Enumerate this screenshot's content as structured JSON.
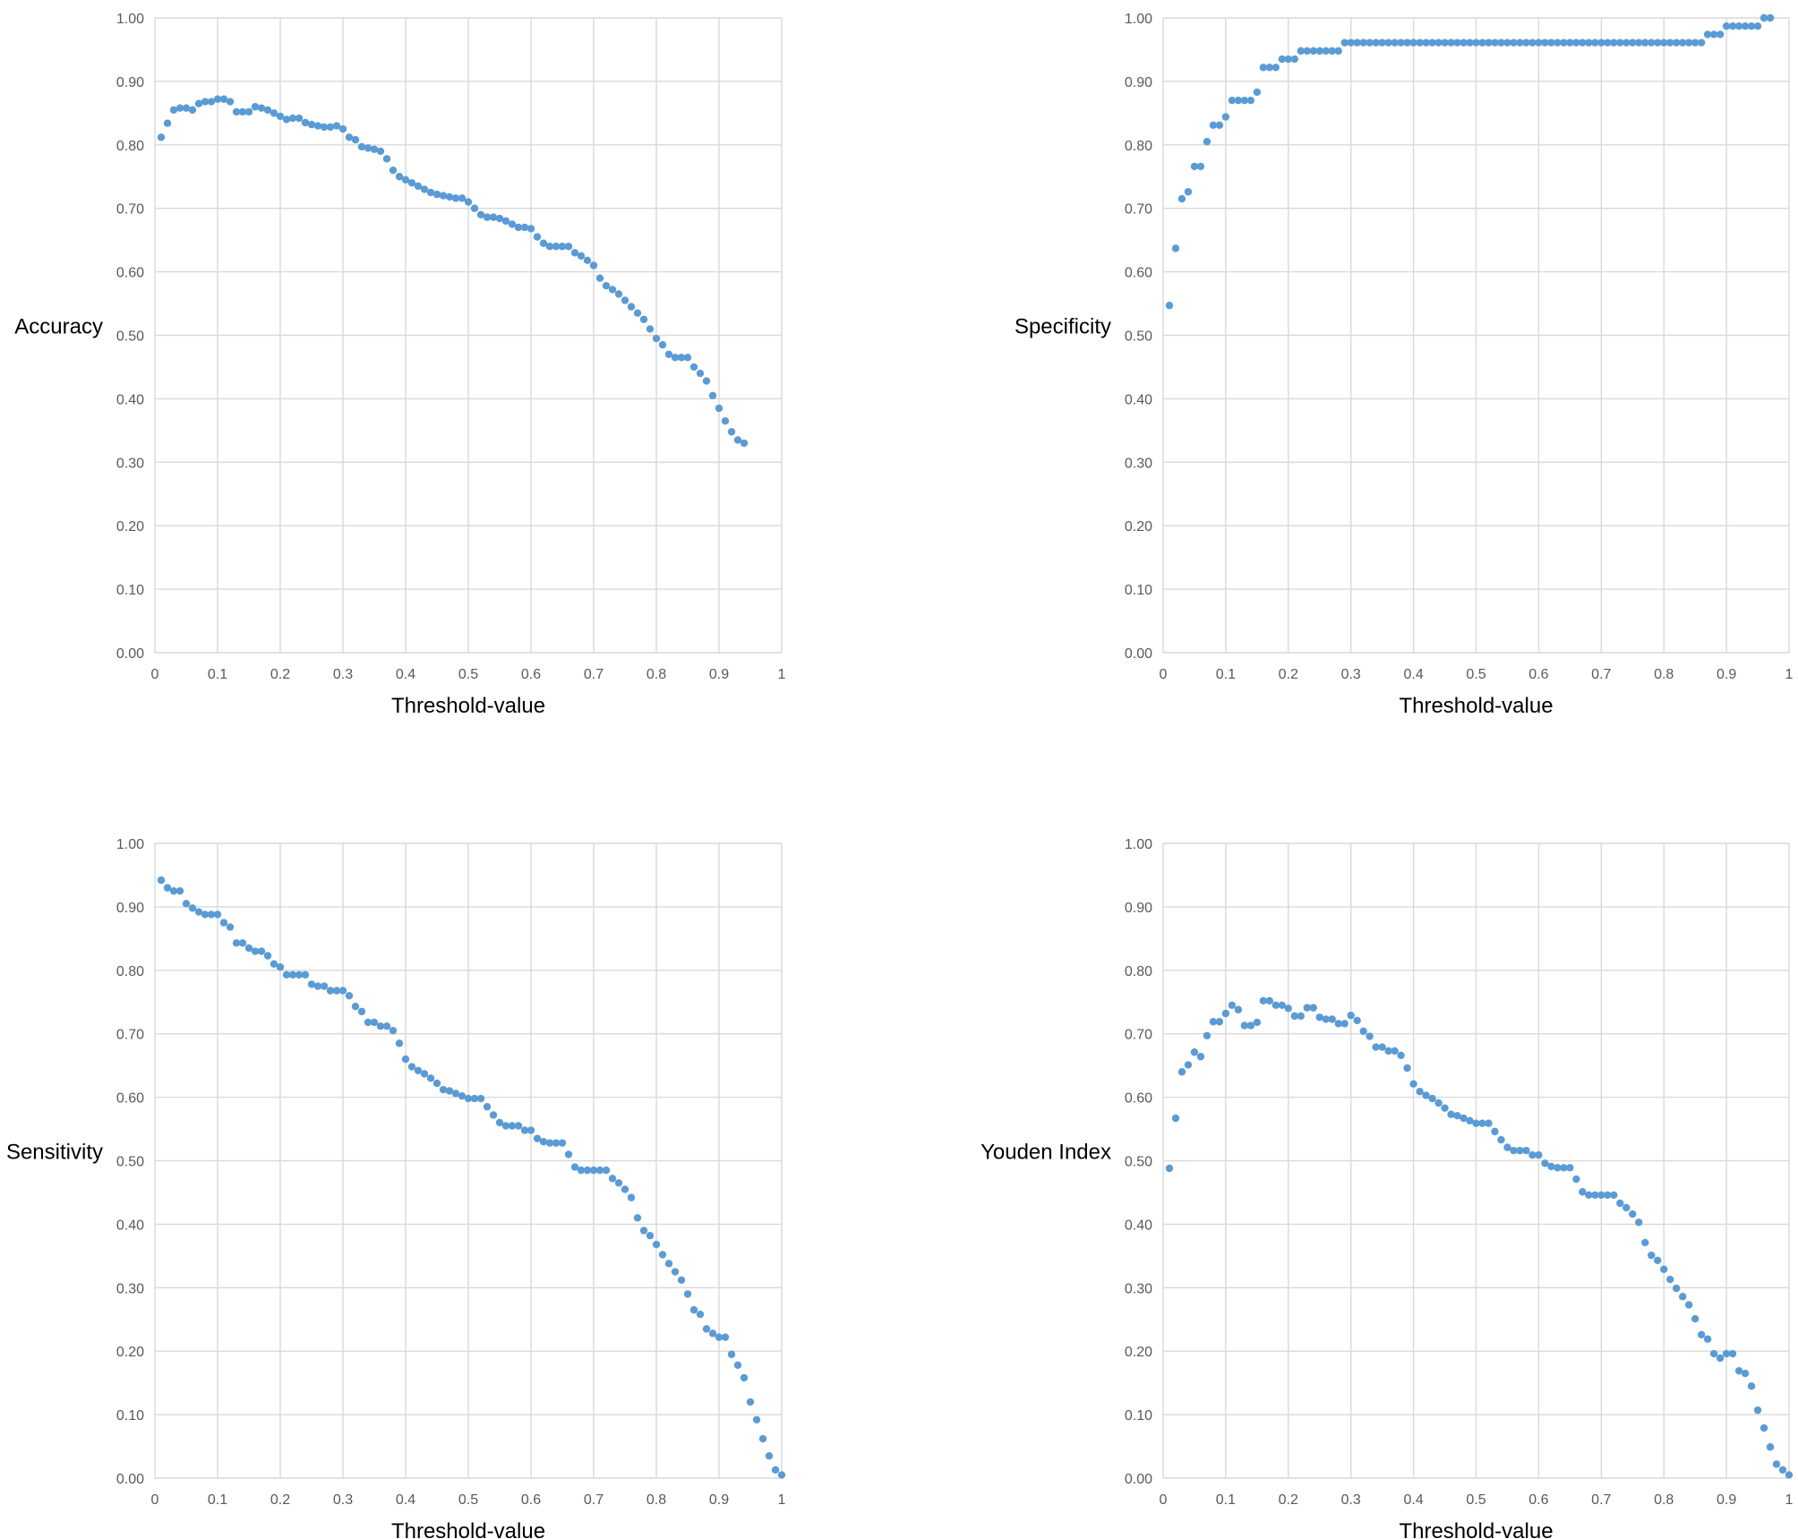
{
  "chart_data": [
    {
      "type": "scatter",
      "xlabel": "Threshold-value",
      "ylabel": "Accuracy",
      "xlim": [
        0,
        1
      ],
      "ylim": [
        0,
        1
      ],
      "x_ticks": [
        "0",
        "0.1",
        "0.2",
        "0.3",
        "0.4",
        "0.5",
        "0.6",
        "0.7",
        "0.8",
        "0.9",
        "1"
      ],
      "y_ticks": [
        "0.00",
        "0.10",
        "0.20",
        "0.30",
        "0.40",
        "0.50",
        "0.60",
        "0.70",
        "0.80",
        "0.90",
        "1.00"
      ],
      "grid": true,
      "marker_color": "#5b9bd5",
      "y": [
        0.812,
        0.834,
        0.855,
        0.858,
        0.858,
        0.855,
        0.865,
        0.868,
        0.868,
        0.872,
        0.872,
        0.868,
        0.852,
        0.852,
        0.852,
        0.86,
        0.858,
        0.855,
        0.85,
        0.845,
        0.84,
        0.842,
        0.842,
        0.835,
        0.832,
        0.83,
        0.828,
        0.828,
        0.83,
        0.825,
        0.812,
        0.808,
        0.797,
        0.795,
        0.793,
        0.79,
        0.778,
        0.76,
        0.75,
        0.745,
        0.74,
        0.735,
        0.73,
        0.725,
        0.722,
        0.72,
        0.718,
        0.716,
        0.716,
        0.71,
        0.7,
        0.69,
        0.686,
        0.686,
        0.684,
        0.68,
        0.675,
        0.67,
        0.67,
        0.668,
        0.655,
        0.645,
        0.64,
        0.64,
        0.64,
        0.64,
        0.63,
        0.625,
        0.618,
        0.61,
        0.59,
        0.578,
        0.572,
        0.565,
        0.555,
        0.545,
        0.535,
        0.525,
        0.51,
        0.495,
        0.485,
        0.47,
        0.465,
        0.465,
        0.465,
        0.45,
        0.44,
        0.428,
        0.405,
        0.385,
        0.365,
        0.348,
        0.335,
        0.33
      ]
    },
    {
      "type": "scatter",
      "xlabel": "Threshold-value",
      "ylabel": "Specificity",
      "xlim": [
        0,
        1
      ],
      "ylim": [
        0,
        1
      ],
      "x_ticks": [
        "0",
        "0.1",
        "0.2",
        "0.3",
        "0.4",
        "0.5",
        "0.6",
        "0.7",
        "0.8",
        "0.9",
        "1"
      ],
      "y_ticks": [
        "0.00",
        "0.10",
        "0.20",
        "0.30",
        "0.40",
        "0.50",
        "0.60",
        "0.70",
        "0.80",
        "0.90",
        "1.00"
      ],
      "grid": true,
      "marker_color": "#5b9bd5",
      "y": [
        0.547,
        0.637,
        0.715,
        0.726,
        0.766,
        0.766,
        0.805,
        0.831,
        0.831,
        0.844,
        0.87,
        0.87,
        0.87,
        0.87,
        0.883,
        0.922,
        0.922,
        0.922,
        0.935,
        0.935,
        0.935,
        0.948,
        0.948,
        0.948,
        0.948,
        0.948,
        0.948,
        0.948,
        0.961,
        0.961,
        0.961,
        0.961,
        0.961,
        0.961,
        0.961,
        0.961,
        0.961,
        0.961,
        0.961,
        0.961,
        0.961,
        0.961,
        0.961,
        0.961,
        0.961,
        0.961,
        0.961,
        0.961,
        0.961,
        0.961,
        0.961,
        0.961,
        0.961,
        0.961,
        0.961,
        0.961,
        0.961,
        0.961,
        0.961,
        0.961,
        0.961,
        0.961,
        0.961,
        0.961,
        0.961,
        0.961,
        0.961,
        0.961,
        0.961,
        0.961,
        0.961,
        0.961,
        0.961,
        0.961,
        0.961,
        0.961,
        0.961,
        0.961,
        0.961,
        0.961,
        0.961,
        0.961,
        0.961,
        0.961,
        0.961,
        0.961,
        0.974,
        0.974,
        0.974,
        0.987,
        0.987,
        0.987,
        0.987,
        0.987,
        0.987,
        1.0,
        1.0
      ]
    },
    {
      "type": "scatter",
      "xlabel": "Threshold-value",
      "ylabel": "Sensitivity",
      "xlim": [
        0,
        1
      ],
      "ylim": [
        0,
        1
      ],
      "x_ticks": [
        "0",
        "0.1",
        "0.2",
        "0.3",
        "0.4",
        "0.5",
        "0.6",
        "0.7",
        "0.8",
        "0.9",
        "1"
      ],
      "y_ticks": [
        "0.00",
        "0.10",
        "0.20",
        "0.30",
        "0.40",
        "0.50",
        "0.60",
        "0.70",
        "0.80",
        "0.90",
        "1.00"
      ],
      "grid": true,
      "marker_color": "#5b9bd5",
      "y": [
        0.942,
        0.93,
        0.925,
        0.925,
        0.905,
        0.898,
        0.892,
        0.888,
        0.888,
        0.888,
        0.875,
        0.868,
        0.843,
        0.843,
        0.835,
        0.83,
        0.83,
        0.823,
        0.81,
        0.805,
        0.793,
        0.793,
        0.793,
        0.793,
        0.778,
        0.775,
        0.775,
        0.768,
        0.768,
        0.768,
        0.76,
        0.743,
        0.735,
        0.718,
        0.718,
        0.712,
        0.712,
        0.705,
        0.685,
        0.66,
        0.648,
        0.642,
        0.637,
        0.63,
        0.622,
        0.612,
        0.61,
        0.606,
        0.602,
        0.598,
        0.598,
        0.598,
        0.585,
        0.572,
        0.56,
        0.555,
        0.555,
        0.555,
        0.548,
        0.548,
        0.535,
        0.53,
        0.528,
        0.528,
        0.528,
        0.51,
        0.49,
        0.485,
        0.485,
        0.485,
        0.485,
        0.485,
        0.472,
        0.465,
        0.455,
        0.442,
        0.41,
        0.39,
        0.382,
        0.368,
        0.352,
        0.338,
        0.325,
        0.312,
        0.29,
        0.265,
        0.258,
        0.235,
        0.228,
        0.222,
        0.222,
        0.195,
        0.178,
        0.158,
        0.12,
        0.092,
        0.062,
        0.035,
        0.013,
        0.005
      ]
    },
    {
      "type": "scatter",
      "xlabel": "Threshold-value",
      "ylabel": "Youden Index",
      "xlim": [
        0,
        1
      ],
      "ylim": [
        0,
        1
      ],
      "x_ticks": [
        "0",
        "0.1",
        "0.2",
        "0.3",
        "0.4",
        "0.5",
        "0.6",
        "0.7",
        "0.8",
        "0.9",
        "1"
      ],
      "y_ticks": [
        "0.00",
        "0.10",
        "0.20",
        "0.30",
        "0.40",
        "0.50",
        "0.60",
        "0.70",
        "0.80",
        "0.90",
        "1.00"
      ],
      "grid": true,
      "marker_color": "#5b9bd5",
      "y": [
        0.488,
        0.567,
        0.64,
        0.651,
        0.671,
        0.664,
        0.697,
        0.719,
        0.719,
        0.732,
        0.745,
        0.738,
        0.713,
        0.713,
        0.718,
        0.752,
        0.752,
        0.745,
        0.745,
        0.74,
        0.728,
        0.728,
        0.741,
        0.741,
        0.726,
        0.723,
        0.723,
        0.716,
        0.716,
        0.729,
        0.721,
        0.704,
        0.696,
        0.679,
        0.679,
        0.673,
        0.673,
        0.666,
        0.646,
        0.621,
        0.609,
        0.603,
        0.598,
        0.591,
        0.583,
        0.573,
        0.571,
        0.567,
        0.563,
        0.559,
        0.559,
        0.559,
        0.546,
        0.533,
        0.521,
        0.516,
        0.516,
        0.516,
        0.509,
        0.509,
        0.496,
        0.491,
        0.489,
        0.489,
        0.489,
        0.471,
        0.451,
        0.446,
        0.446,
        0.446,
        0.446,
        0.446,
        0.433,
        0.426,
        0.416,
        0.403,
        0.371,
        0.351,
        0.343,
        0.329,
        0.313,
        0.299,
        0.286,
        0.273,
        0.251,
        0.226,
        0.219,
        0.196,
        0.189,
        0.196,
        0.196,
        0.169,
        0.165,
        0.145,
        0.107,
        0.079,
        0.049,
        0.022,
        0.013,
        0.005
      ]
    }
  ]
}
